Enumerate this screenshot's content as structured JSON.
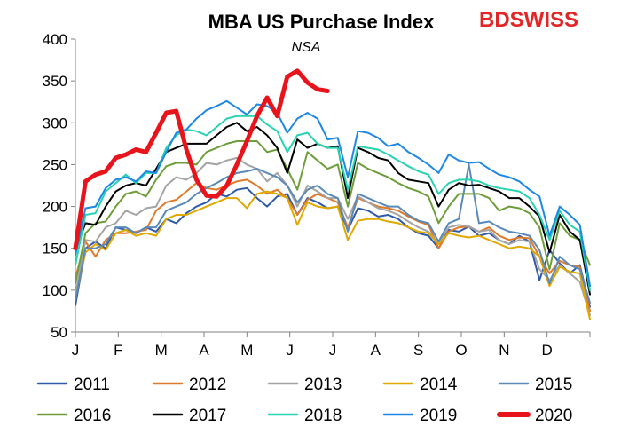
{
  "chart_data": {
    "type": "line",
    "title": "MBA US Purchase Index",
    "subtitle": "NSA",
    "brand": {
      "text_bd": "BD",
      "text_swiss": "SWISS",
      "color": "#e32526"
    },
    "xlabel": "",
    "ylabel": "",
    "ylim": [
      50,
      400
    ],
    "yticks": [
      50,
      100,
      150,
      200,
      250,
      300,
      350,
      400
    ],
    "xlim": [
      1,
      52
    ],
    "month_labels": [
      "J",
      "F",
      "M",
      "A",
      "M",
      "J",
      "J",
      "A",
      "S",
      "O",
      "N",
      "D"
    ],
    "grid": false,
    "legend_position": "bottom",
    "series": [
      {
        "name": "2011",
        "color": "#2e5aa8",
        "width": 2,
        "x": [
          1,
          2,
          3,
          4,
          5,
          6,
          7,
          8,
          9,
          10,
          11,
          12,
          13,
          14,
          15,
          16,
          17,
          18,
          19,
          20,
          21,
          22,
          23,
          24,
          25,
          26,
          27,
          28,
          29,
          30,
          31,
          32,
          33,
          34,
          35,
          36,
          37,
          38,
          39,
          40,
          41,
          42,
          43,
          44,
          45,
          46,
          47,
          48,
          49,
          50,
          51,
          52
        ],
        "values": [
          82,
          150,
          158,
          150,
          175,
          172,
          168,
          175,
          170,
          185,
          180,
          192,
          200,
          205,
          215,
          212,
          220,
          222,
          210,
          200,
          212,
          215,
          190,
          210,
          205,
          198,
          200,
          172,
          198,
          195,
          188,
          190,
          185,
          175,
          168,
          165,
          150,
          172,
          170,
          176,
          165,
          168,
          160,
          155,
          165,
          158,
          112,
          148,
          132,
          120,
          130,
          80
        ]
      },
      {
        "name": "2012",
        "color": "#e07a2b",
        "width": 2,
        "x": [
          1,
          2,
          3,
          4,
          5,
          6,
          7,
          8,
          9,
          10,
          11,
          12,
          13,
          14,
          15,
          16,
          17,
          18,
          19,
          20,
          21,
          22,
          23,
          24,
          25,
          26,
          27,
          28,
          29,
          30,
          31,
          32,
          33,
          34,
          35,
          36,
          37,
          38,
          39,
          40,
          41,
          42,
          43,
          44,
          45,
          46,
          47,
          48,
          49,
          50,
          51,
          52
        ],
        "values": [
          115,
          158,
          140,
          160,
          168,
          168,
          170,
          172,
          195,
          205,
          208,
          218,
          228,
          222,
          220,
          225,
          230,
          232,
          225,
          215,
          220,
          210,
          190,
          208,
          215,
          210,
          205,
          175,
          210,
          205,
          200,
          198,
          195,
          188,
          182,
          178,
          150,
          170,
          175,
          176,
          170,
          175,
          165,
          160,
          163,
          162,
          140,
          120,
          135,
          130,
          128,
          75
        ]
      },
      {
        "name": "2013",
        "color": "#a4a4a4",
        "width": 2,
        "x": [
          1,
          2,
          3,
          4,
          5,
          6,
          7,
          8,
          9,
          10,
          11,
          12,
          13,
          14,
          15,
          16,
          17,
          18,
          19,
          20,
          21,
          22,
          23,
          24,
          25,
          26,
          27,
          28,
          29,
          30,
          31,
          32,
          33,
          34,
          35,
          36,
          37,
          38,
          39,
          40,
          41,
          42,
          43,
          44,
          45,
          46,
          47,
          48,
          49,
          50,
          51,
          52
        ],
        "values": [
          95,
          160,
          158,
          175,
          180,
          195,
          190,
          198,
          200,
          225,
          235,
          232,
          240,
          252,
          250,
          255,
          258,
          250,
          245,
          230,
          240,
          225,
          200,
          225,
          218,
          210,
          210,
          185,
          212,
          205,
          198,
          195,
          190,
          182,
          175,
          170,
          155,
          175,
          178,
          176,
          170,
          172,
          160,
          155,
          160,
          158,
          125,
          112,
          130,
          120,
          110,
          70
        ]
      },
      {
        "name": "2014",
        "color": "#e0a800",
        "width": 2,
        "x": [
          1,
          2,
          3,
          4,
          5,
          6,
          7,
          8,
          9,
          10,
          11,
          12,
          13,
          14,
          15,
          16,
          17,
          18,
          19,
          20,
          21,
          22,
          23,
          24,
          25,
          26,
          27,
          28,
          29,
          30,
          31,
          32,
          33,
          34,
          35,
          36,
          37,
          38,
          39,
          40,
          41,
          42,
          43,
          44,
          45,
          46,
          47,
          48,
          49,
          50,
          51,
          52
        ],
        "values": [
          90,
          145,
          155,
          148,
          168,
          172,
          165,
          168,
          165,
          185,
          190,
          190,
          195,
          200,
          205,
          210,
          210,
          198,
          215,
          218,
          215,
          210,
          178,
          205,
          200,
          198,
          200,
          160,
          183,
          185,
          185,
          182,
          180,
          175,
          170,
          168,
          155,
          168,
          165,
          163,
          165,
          160,
          155,
          150,
          152,
          150,
          140,
          105,
          128,
          122,
          120,
          65
        ]
      },
      {
        "name": "2015",
        "color": "#5a8ab8",
        "width": 2,
        "x": [
          1,
          2,
          3,
          4,
          5,
          6,
          7,
          8,
          9,
          10,
          11,
          12,
          13,
          14,
          15,
          16,
          17,
          18,
          19,
          20,
          21,
          22,
          23,
          24,
          25,
          26,
          27,
          28,
          29,
          30,
          31,
          32,
          33,
          34,
          35,
          36,
          37,
          38,
          39,
          40,
          41,
          42,
          43,
          44,
          45,
          46,
          47,
          48,
          49,
          50,
          51,
          52
        ],
        "values": [
          88,
          150,
          150,
          155,
          175,
          175,
          168,
          175,
          175,
          195,
          200,
          205,
          215,
          222,
          228,
          235,
          240,
          242,
          245,
          240,
          235,
          225,
          205,
          220,
          225,
          215,
          210,
          170,
          215,
          210,
          205,
          200,
          200,
          190,
          183,
          180,
          158,
          180,
          185,
          250,
          180,
          182,
          175,
          170,
          168,
          165,
          148,
          108,
          140,
          130,
          125,
          85
        ]
      },
      {
        "name": "2016",
        "color": "#6d9e3a",
        "width": 2,
        "x": [
          1,
          2,
          3,
          4,
          5,
          6,
          7,
          8,
          9,
          10,
          11,
          12,
          13,
          14,
          15,
          16,
          17,
          18,
          19,
          20,
          21,
          22,
          23,
          24,
          25,
          26,
          27,
          28,
          29,
          30,
          31,
          32,
          33,
          34,
          35,
          36,
          37,
          38,
          39,
          40,
          41,
          42,
          43,
          44,
          45,
          46,
          47,
          48,
          49,
          50,
          51,
          52
        ],
        "values": [
          108,
          168,
          180,
          182,
          200,
          215,
          218,
          212,
          232,
          248,
          252,
          252,
          250,
          265,
          270,
          275,
          278,
          278,
          278,
          265,
          268,
          245,
          220,
          265,
          255,
          245,
          250,
          200,
          252,
          245,
          240,
          235,
          228,
          222,
          218,
          212,
          180,
          200,
          215,
          215,
          215,
          210,
          195,
          200,
          198,
          192,
          175,
          125,
          180,
          165,
          160,
          130
        ]
      },
      {
        "name": "2017",
        "color": "#000000",
        "width": 2,
        "x": [
          1,
          2,
          3,
          4,
          5,
          6,
          7,
          8,
          9,
          10,
          11,
          12,
          13,
          14,
          15,
          16,
          17,
          18,
          19,
          20,
          21,
          22,
          23,
          24,
          25,
          26,
          27,
          28,
          29,
          30,
          31,
          32,
          33,
          34,
          35,
          36,
          37,
          38,
          39,
          40,
          41,
          42,
          43,
          44,
          45,
          46,
          47,
          48,
          49,
          50,
          51,
          52
        ],
        "values": [
          148,
          180,
          178,
          200,
          218,
          225,
          228,
          225,
          245,
          265,
          270,
          275,
          275,
          275,
          285,
          295,
          300,
          290,
          295,
          285,
          270,
          240,
          280,
          270,
          275,
          270,
          272,
          210,
          270,
          265,
          258,
          255,
          240,
          232,
          230,
          228,
          200,
          220,
          228,
          225,
          226,
          222,
          218,
          210,
          210,
          200,
          188,
          145,
          190,
          170,
          160,
          95
        ]
      },
      {
        "name": "2018",
        "color": "#27d3b0",
        "width": 2,
        "x": [
          1,
          2,
          3,
          4,
          5,
          6,
          7,
          8,
          9,
          10,
          11,
          12,
          13,
          14,
          15,
          16,
          17,
          18,
          19,
          20,
          21,
          22,
          23,
          24,
          25,
          26,
          27,
          28,
          29,
          30,
          31,
          32,
          33,
          34,
          35,
          36,
          37,
          38,
          39,
          40,
          41,
          42,
          43,
          44,
          45,
          46,
          47,
          48,
          49,
          50,
          51,
          52
        ],
        "values": [
          130,
          190,
          192,
          218,
          228,
          238,
          228,
          240,
          240,
          270,
          285,
          292,
          290,
          285,
          295,
          305,
          308,
          308,
          308,
          298,
          290,
          265,
          285,
          288,
          275,
          270,
          270,
          220,
          272,
          270,
          268,
          262,
          255,
          248,
          242,
          238,
          215,
          228,
          232,
          232,
          230,
          225,
          222,
          220,
          218,
          210,
          190,
          160,
          195,
          178,
          170,
          100
        ]
      },
      {
        "name": "2019",
        "color": "#1e88e5",
        "width": 2,
        "x": [
          1,
          2,
          3,
          4,
          5,
          6,
          7,
          8,
          9,
          10,
          11,
          12,
          13,
          14,
          15,
          16,
          17,
          18,
          19,
          20,
          21,
          22,
          23,
          24,
          25,
          26,
          27,
          28,
          29,
          30,
          31,
          32,
          33,
          34,
          35,
          36,
          37,
          38,
          39,
          40,
          41,
          42,
          43,
          44,
          45,
          46,
          47,
          48,
          49,
          50,
          51,
          52
        ],
        "values": [
          142,
          198,
          200,
          222,
          232,
          235,
          230,
          242,
          240,
          265,
          288,
          292,
          305,
          315,
          320,
          326,
          318,
          310,
          322,
          320,
          312,
          288,
          305,
          312,
          305,
          280,
          282,
          235,
          290,
          288,
          282,
          272,
          275,
          265,
          258,
          250,
          240,
          262,
          255,
          252,
          253,
          245,
          238,
          235,
          230,
          220,
          212,
          165,
          200,
          190,
          178,
          105
        ]
      },
      {
        "name": "2020",
        "color": "#e8141b",
        "width": 5,
        "x": [
          1,
          2,
          3,
          4,
          5,
          6,
          7,
          8,
          9,
          10,
          11,
          12,
          13,
          14,
          15,
          16,
          17,
          18,
          19,
          20,
          21,
          22,
          23,
          24,
          25,
          26
        ],
        "values": [
          150,
          230,
          238,
          242,
          258,
          262,
          268,
          265,
          288,
          312,
          314,
          268,
          232,
          213,
          212,
          225,
          250,
          278,
          308,
          330,
          308,
          355,
          362,
          348,
          340,
          338
        ]
      }
    ]
  }
}
